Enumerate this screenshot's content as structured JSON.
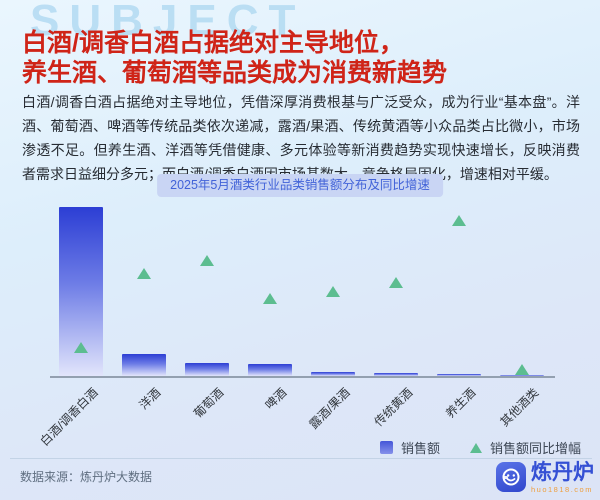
{
  "page": {
    "watermark": "SUBJECT"
  },
  "header": {
    "title_line1": "白酒/调香白酒占据绝对主导地位，",
    "title_line2": "养生酒、葡萄酒等品类成为消费新趋势"
  },
  "intro": {
    "text": "白酒/调香白酒占据绝对主导地位，凭借深厚消费根基与广泛受众，成为行业“基本盘”。洋酒、葡萄酒、啤酒等传统品类依次递减，露酒/果酒、传统黄酒等小众品类占比微小，市场渗透不足。但养生酒、洋酒等凭借健康、多元体验等新消费趋势实现快速增长，反映消费者需求日益细分多元；而白酒/调香白酒因市场基数大、竞争格局固化，增速相对平缓。"
  },
  "chart": {
    "badge_title": "2025年5月酒类行业品类销售额分布及同比增速",
    "legend_sales": "销售额",
    "legend_growth": "销售额同比增幅"
  },
  "chart_data": {
    "type": "bar",
    "title": "2025年5月酒类行业品类销售额分布及同比增速",
    "categories": [
      "白酒/调香白酒",
      "洋酒",
      "葡萄酒",
      "啤酒",
      "露酒/果酒",
      "传统黄酒",
      "养生酒",
      "其他酒类"
    ],
    "series": [
      {
        "name": "销售额",
        "type": "bar",
        "unit": "relative index, tallest bar = 100 (no numeric axis shown)",
        "values": [
          100,
          13,
          7.7,
          7.1,
          2.4,
          1.8,
          1.2,
          0.6
        ]
      },
      {
        "name": "销售额同比增幅",
        "type": "scatter-triangle",
        "unit": "estimated % read from marker heights (no numeric axis shown)",
        "values": [
          9,
          33,
          37,
          25,
          27,
          30,
          50,
          2
        ]
      }
    ],
    "xlabel": "",
    "ylabel": "",
    "grid": false,
    "axes_numeric_labels": false,
    "legend_position": "bottom-right",
    "x_tick_label_rotation_deg": -45
  },
  "footer": {
    "source": "数据来源：炼丹炉大数据",
    "brand_name": "炼丹炉",
    "brand_url": "huo1818.com"
  },
  "colors": {
    "title_red": "#cf2418",
    "bar_blue": "#2c3ed4",
    "growth_green": "#5cbd90",
    "badge_bg": "#c9d5f4",
    "badge_text": "#4263d8",
    "axis_gray": "#93a0b0",
    "brand_blue": "#3450d4",
    "brand_orange": "#ef9f3e"
  }
}
